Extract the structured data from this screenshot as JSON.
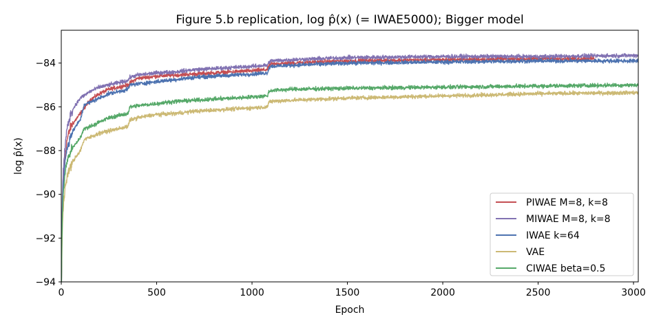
{
  "chart_data": {
    "type": "line",
    "title": "Figure 5.b replication, log p̂(x) (= IWAE5000); Bigger model",
    "xlabel": "Epoch",
    "ylabel": "log p̂(x)",
    "xlim": [
      0,
      3025
    ],
    "ylim": [
      -94,
      -82.5
    ],
    "xticks": [
      0,
      500,
      1000,
      1500,
      2000,
      2500,
      3000
    ],
    "yticks": [
      -94,
      -92,
      -90,
      -88,
      -86,
      -84
    ],
    "grid": false,
    "legend_position": "lower-right",
    "series": [
      {
        "name": "PIWAE M=8, k=8",
        "color": "#c44e52",
        "x": [
          1,
          5,
          10,
          20,
          30,
          50,
          75,
          100,
          150,
          200,
          250,
          300,
          350,
          360,
          400,
          500,
          600,
          700,
          800,
          900,
          1000,
          1080,
          1090,
          1100,
          1200,
          1500,
          2000,
          2500,
          2800
        ],
        "y": [
          -94,
          -90.8,
          -89.6,
          -88.3,
          -87.5,
          -86.9,
          -86.6,
          -86.3,
          -85.7,
          -85.4,
          -85.2,
          -85.1,
          -85.0,
          -84.9,
          -84.7,
          -84.6,
          -84.55,
          -84.5,
          -84.45,
          -84.4,
          -84.35,
          -84.3,
          -84.1,
          -84.05,
          -84.0,
          -83.9,
          -83.85,
          -83.8,
          -83.8
        ]
      },
      {
        "name": "MIWAE M=8, k=8",
        "color": "#8172b2",
        "x": [
          1,
          5,
          10,
          20,
          30,
          50,
          75,
          100,
          150,
          200,
          250,
          300,
          350,
          360,
          400,
          500,
          600,
          700,
          800,
          900,
          1000,
          1080,
          1090,
          1100,
          1200,
          1500,
          2000,
          2500,
          3025
        ],
        "y": [
          -94,
          -90.3,
          -89.0,
          -87.8,
          -87.0,
          -86.3,
          -85.9,
          -85.6,
          -85.3,
          -85.1,
          -85.0,
          -84.9,
          -84.8,
          -84.65,
          -84.55,
          -84.45,
          -84.4,
          -84.3,
          -84.25,
          -84.2,
          -84.15,
          -84.1,
          -83.95,
          -83.9,
          -83.85,
          -83.75,
          -83.7,
          -83.7,
          -83.65
        ]
      },
      {
        "name": "IWAE k=64",
        "color": "#4c72b0",
        "x": [
          1,
          5,
          10,
          20,
          30,
          50,
          75,
          100,
          120,
          150,
          200,
          250,
          300,
          350,
          360,
          400,
          500,
          600,
          700,
          800,
          900,
          1000,
          1080,
          1090,
          1100,
          1200,
          1500,
          2000,
          2500,
          3025
        ],
        "y": [
          -94,
          -90.8,
          -89.7,
          -88.5,
          -87.9,
          -87.3,
          -86.9,
          -86.6,
          -85.9,
          -85.8,
          -85.6,
          -85.4,
          -85.3,
          -85.2,
          -85.0,
          -84.95,
          -84.85,
          -84.75,
          -84.65,
          -84.6,
          -84.55,
          -84.5,
          -84.45,
          -84.2,
          -84.15,
          -84.1,
          -84.0,
          -83.95,
          -83.9,
          -83.9
        ]
      },
      {
        "name": "VAE",
        "color": "#ccb974",
        "x": [
          1,
          5,
          10,
          20,
          30,
          50,
          75,
          100,
          120,
          150,
          200,
          250,
          300,
          350,
          360,
          400,
          500,
          600,
          700,
          800,
          900,
          1000,
          1080,
          1090,
          1100,
          1200,
          1500,
          2000,
          2500,
          3025
        ],
        "y": [
          -94,
          -91.8,
          -90.6,
          -89.7,
          -89.2,
          -88.7,
          -88.3,
          -88.0,
          -87.5,
          -87.4,
          -87.2,
          -87.1,
          -87.0,
          -86.9,
          -86.6,
          -86.5,
          -86.35,
          -86.3,
          -86.2,
          -86.15,
          -86.1,
          -86.05,
          -86.0,
          -85.8,
          -85.75,
          -85.7,
          -85.6,
          -85.5,
          -85.4,
          -85.35
        ]
      },
      {
        "name": "CIWAE beta=0.5",
        "color": "#55a868",
        "x": [
          1,
          5,
          10,
          20,
          30,
          50,
          75,
          100,
          120,
          150,
          200,
          250,
          300,
          350,
          360,
          400,
          500,
          600,
          700,
          800,
          900,
          1000,
          1080,
          1090,
          1100,
          1200,
          1500,
          2000,
          2500,
          3025
        ],
        "y": [
          -94,
          -91.2,
          -90.0,
          -89.0,
          -88.5,
          -88.0,
          -87.7,
          -87.4,
          -87.0,
          -86.9,
          -86.7,
          -86.5,
          -86.4,
          -86.3,
          -86.0,
          -85.95,
          -85.85,
          -85.75,
          -85.7,
          -85.65,
          -85.6,
          -85.55,
          -85.5,
          -85.3,
          -85.25,
          -85.2,
          -85.15,
          -85.1,
          -85.05,
          -85.0
        ]
      }
    ]
  }
}
